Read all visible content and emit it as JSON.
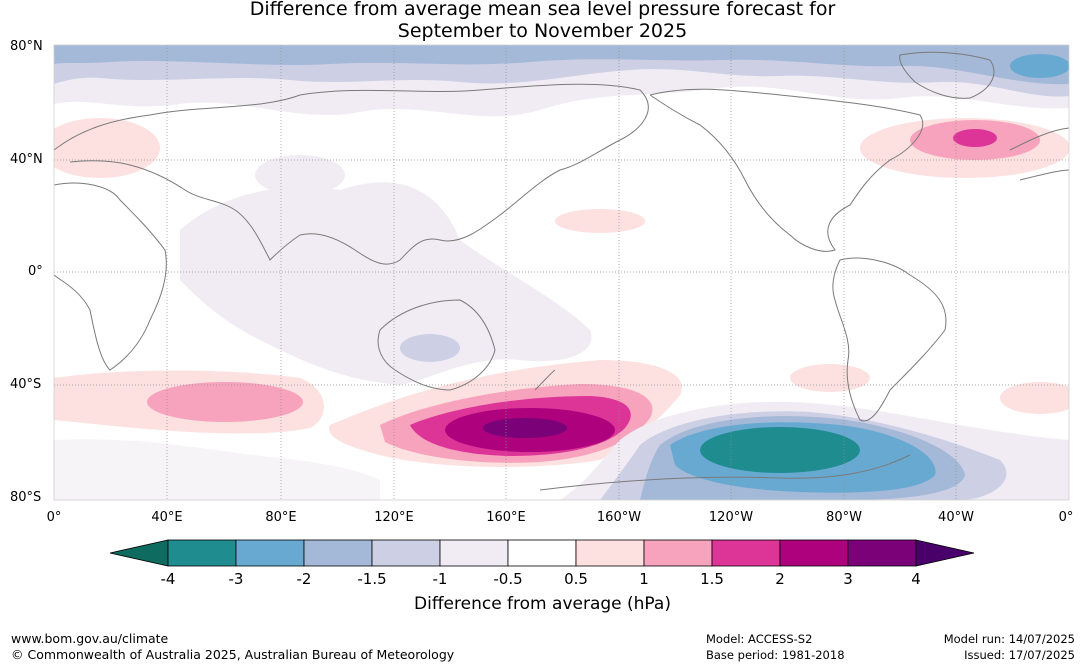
{
  "title": {
    "line1": "Difference from average mean sea level pressure forecast for",
    "line2": "September to November 2025"
  },
  "map": {
    "lat_labels": [
      "80°N",
      "40°N",
      "0°",
      "40°S",
      "80°S"
    ],
    "lon_labels": [
      "0°",
      "40°E",
      "80°E",
      "120°E",
      "160°E",
      "160°W",
      "120°W",
      "80°W",
      "40°W",
      "0°"
    ]
  },
  "colorbar": {
    "title": "Difference from average (hPa)",
    "ticks": [
      "-4",
      "-3",
      "-2",
      "-1.5",
      "-1",
      "-0.5",
      "0.5",
      "1",
      "1.5",
      "2",
      "3",
      "4"
    ],
    "colors": [
      "#1f8c90",
      "#68a9d1",
      "#a4b8d8",
      "#cdcfe5",
      "#f1ecf4",
      "#ffffff",
      "#fde0e0",
      "#f7a3bd",
      "#dd3497",
      "#ae017e",
      "#7a0177"
    ],
    "under_color": "#0d6b60",
    "over_color": "#49006a"
  },
  "footer": {
    "url": "www.bom.gov.au/climate",
    "copyright": "© Commonwealth of Australia 2025, Australian Bureau of Meteorology",
    "model": "Model: ACCESS-S2",
    "base_period": "Base period: 1981-2018",
    "model_run": "Model run: 14/07/2025",
    "issued": "Issued: 17/07/2025"
  }
}
